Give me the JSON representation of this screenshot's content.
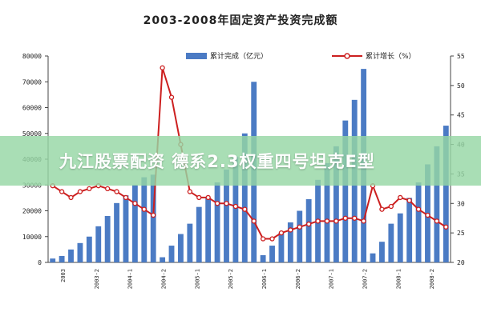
{
  "chart_data": {
    "type": "bar",
    "title": "2003-2008年固定资产投资完成额",
    "legend_position": "top-right",
    "grid": false,
    "x_tick_labels": [
      "2003",
      "2003-2",
      "2004-1",
      "2004-2",
      "2005-1",
      "2005-2",
      "2006-1",
      "2006-2",
      "2007-1",
      "2007-2",
      "2008-1",
      "2008-2"
    ],
    "x": [
      1,
      2,
      3,
      4,
      5,
      6,
      7,
      8,
      9,
      10,
      11,
      12,
      13,
      14,
      15,
      16,
      17,
      18,
      19,
      20,
      21,
      22,
      23,
      24,
      25,
      26,
      27,
      28,
      29,
      30,
      31,
      32,
      33,
      34,
      35,
      36,
      37,
      38,
      39,
      40,
      41,
      42,
      43,
      44
    ],
    "y_left": {
      "range": [
        0,
        80000
      ],
      "ticks": [
        0,
        10000,
        20000,
        30000,
        40000,
        50000,
        60000,
        70000,
        80000
      ]
    },
    "y_right": {
      "range": [
        20,
        55
      ],
      "ticks": [
        20,
        25,
        30,
        35,
        40,
        45,
        50,
        55
      ]
    },
    "series": [
      {
        "name": "累计完成（亿元）",
        "type": "bar",
        "axis": "left",
        "color": "#4b7bc4",
        "values": [
          1500,
          2500,
          5000,
          7500,
          10000,
          14000,
          18000,
          23000,
          26000,
          30000,
          33000,
          34000,
          2000,
          6500,
          11000,
          15000,
          21500,
          25000,
          31000,
          36000,
          41000,
          50000,
          70000,
          2800,
          6500,
          11500,
          15500,
          20000,
          24500,
          32000,
          38500,
          45000,
          55000,
          63000,
          75000,
          3500,
          8000,
          15000,
          19000,
          25000,
          31000,
          38000,
          45000,
          53000
        ]
      },
      {
        "name": "累计增长（%）",
        "type": "line",
        "axis": "right",
        "color": "#cc1f1f",
        "values": [
          33,
          32,
          31,
          32,
          32.5,
          33,
          32.5,
          32,
          31,
          30,
          29,
          28,
          53,
          48,
          40,
          32,
          31,
          31,
          30,
          30,
          29.5,
          29,
          27,
          24,
          24,
          25,
          25.5,
          26,
          26.5,
          27,
          27,
          27,
          27.5,
          27.5,
          27,
          33,
          29,
          29.5,
          31,
          30.5,
          29,
          28,
          27,
          26
        ]
      }
    ]
  },
  "banner": {
    "text": "九江股票配资 德系2.3权重四号坦克E型"
  }
}
